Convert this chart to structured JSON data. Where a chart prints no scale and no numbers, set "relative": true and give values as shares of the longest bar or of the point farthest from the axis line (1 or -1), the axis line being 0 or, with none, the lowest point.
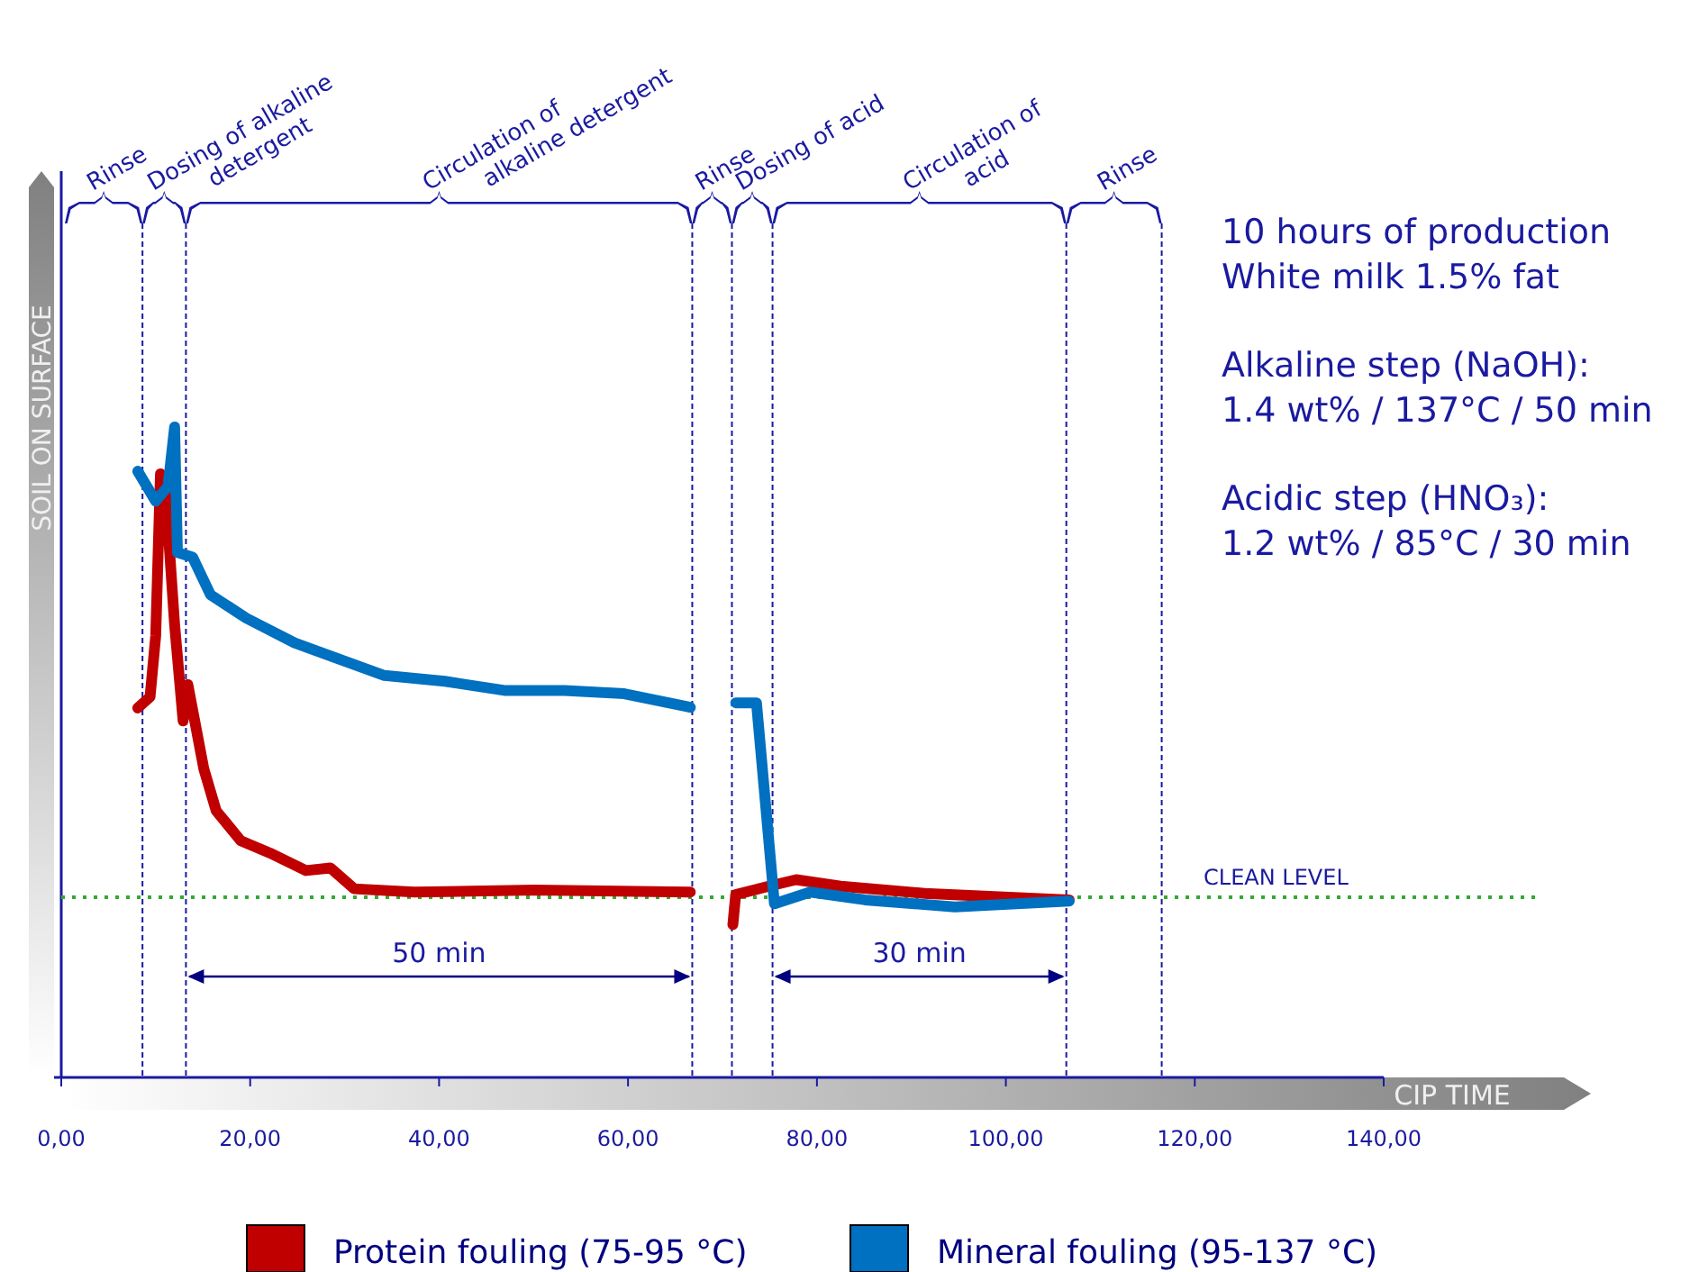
{
  "chart_data": {
    "type": "line",
    "relative": true,
    "xlabel": "CIP TIME",
    "ylabel": "SOIL ON SURFACE",
    "xlim": [
      0,
      140
    ],
    "xticks": [
      {
        "value": 0,
        "label": "0,00"
      },
      {
        "value": 20,
        "label": "20,00"
      },
      {
        "value": 40,
        "label": "40,00"
      },
      {
        "value": 60,
        "label": "60,00"
      },
      {
        "value": 80,
        "label": "80,00"
      },
      {
        "value": 100,
        "label": "100,00"
      },
      {
        "value": 120,
        "label": "120,00"
      },
      {
        "value": 140,
        "label": "140,00"
      }
    ],
    "series": [
      {
        "name": "Protein fouling (75-95 °C)",
        "color": "#c00000",
        "x": [
          8.1,
          9.4,
          10.0,
          10.5,
          11.0,
          12.0,
          12.9,
          13.4,
          15.1,
          16.4,
          19.0,
          22.1,
          25.9,
          28.5,
          31.0,
          37.4,
          50.1,
          66.6,
          68.5,
          71.1,
          71.4,
          74.9,
          77.8,
          82.5,
          91.4,
          106.7
        ],
        "values": [
          0.568,
          0.585,
          0.679,
          0.928,
          0.909,
          0.696,
          0.548,
          0.604,
          0.474,
          0.41,
          0.364,
          0.345,
          0.318,
          0.322,
          0.29,
          0.285,
          0.288,
          0.285,
          null,
          0.235,
          0.281,
          0.294,
          0.304,
          0.294,
          0.283,
          0.273
        ]
      },
      {
        "name": "Mineral fouling (95-137 °C)",
        "color": "#0070c0",
        "x": [
          8.1,
          10.0,
          11.3,
          12.0,
          12.3,
          13.9,
          15.8,
          19.6,
          24.7,
          29.8,
          34.2,
          40.6,
          46.9,
          53.3,
          59.6,
          66.6,
          68.5,
          71.4,
          73.6,
          75.5,
          79.3,
          85.1,
          94.6,
          106.7
        ],
        "values": [
          0.932,
          0.886,
          0.909,
          1,
          0.807,
          0.8,
          0.742,
          0.706,
          0.668,
          0.641,
          0.618,
          0.609,
          0.595,
          0.595,
          0.59,
          0.569,
          null,
          0.576,
          0.576,
          0.267,
          0.285,
          0.273,
          0.262,
          0.271
        ]
      }
    ],
    "ref_lines": [
      {
        "axis": "y",
        "value": 0.277,
        "label": "CLEAN LEVEL",
        "color": "#33aa33",
        "line_style": "dotted"
      },
      {
        "axis": "x",
        "value": 8.6,
        "color": "#1a1aa0",
        "line_style": "dashed"
      },
      {
        "axis": "x",
        "value": 13.2,
        "color": "#1a1aa0",
        "line_style": "dashed"
      },
      {
        "axis": "x",
        "value": 66.8,
        "color": "#1a1aa0",
        "line_style": "dashed"
      },
      {
        "axis": "x",
        "value": 71.0,
        "color": "#1a1aa0",
        "line_style": "dashed"
      },
      {
        "axis": "x",
        "value": 75.3,
        "color": "#1a1aa0",
        "line_style": "dashed"
      },
      {
        "axis": "x",
        "value": 106.4,
        "color": "#1a1aa0",
        "line_style": "dashed"
      },
      {
        "axis": "x",
        "value": 116.5,
        "color": "#1a1aa0",
        "line_style": "dashed"
      }
    ],
    "annotations": [
      "10 hours of production",
      "White milk 1.5% fat",
      "Alkaline step (NaOH):",
      "1.4 wt% / 137°C / 50 min",
      "Acidic step (HNO₃):",
      "1.2 wt% / 85°C / 30 min",
      "Rinse",
      "Dosing of alkaline\ndetergent",
      "Circulation of\nalkaline detergent",
      "Rinse",
      "Dosing of acid",
      "Circulation of\nacid",
      "Rinse",
      "50 min",
      "30 min"
    ],
    "legend": "bottom"
  }
}
